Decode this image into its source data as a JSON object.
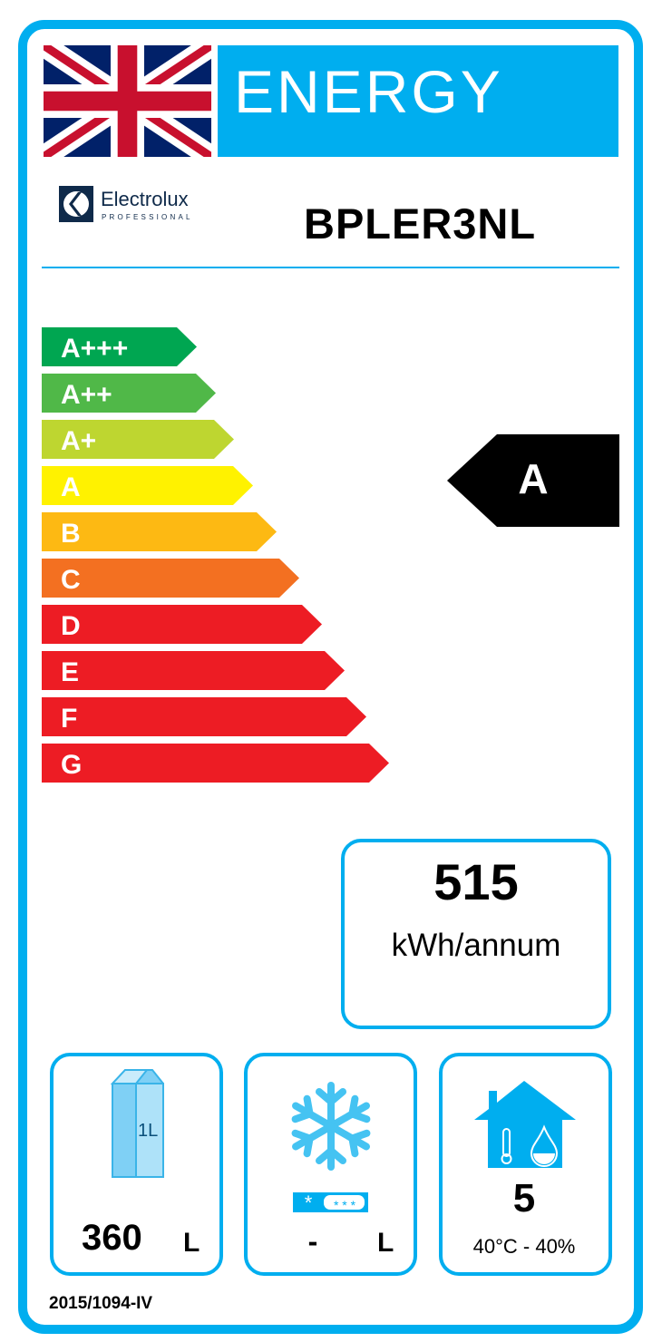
{
  "header": {
    "title": "ENERGY",
    "flag": "union-jack-flag"
  },
  "brand": {
    "name": "Electrolux",
    "sub": "PROFESSIONAL"
  },
  "model": "BPLER3NL",
  "scale": {
    "classes": [
      {
        "label": "A+++",
        "color": "#00a651"
      },
      {
        "label": "A++",
        "color": "#50b848"
      },
      {
        "label": "A+",
        "color": "#bed630"
      },
      {
        "label": "A",
        "color": "#fff200"
      },
      {
        "label": "B",
        "color": "#fdb913"
      },
      {
        "label": "C",
        "color": "#f37021"
      },
      {
        "label": "D",
        "color": "#ed1c24"
      },
      {
        "label": "E",
        "color": "#ed1c24"
      },
      {
        "label": "F",
        "color": "#ed1c24"
      },
      {
        "label": "G",
        "color": "#ed1c24"
      }
    ],
    "rating": "A"
  },
  "consumption": {
    "value": "515",
    "unit": "kWh/annum"
  },
  "chilled_volume": {
    "icon": "milk-carton-icon",
    "carton_text": "1L",
    "value": "360",
    "unit": "L"
  },
  "frozen_volume": {
    "icon": "snowflake-icon",
    "value": "-",
    "unit": "L"
  },
  "climate_class": {
    "icon": "house-climate-icon",
    "value": "5",
    "conditions": "40°C - 40%"
  },
  "regulation": "2015/1094-IV",
  "colors": {
    "accent": "#00aeef"
  }
}
